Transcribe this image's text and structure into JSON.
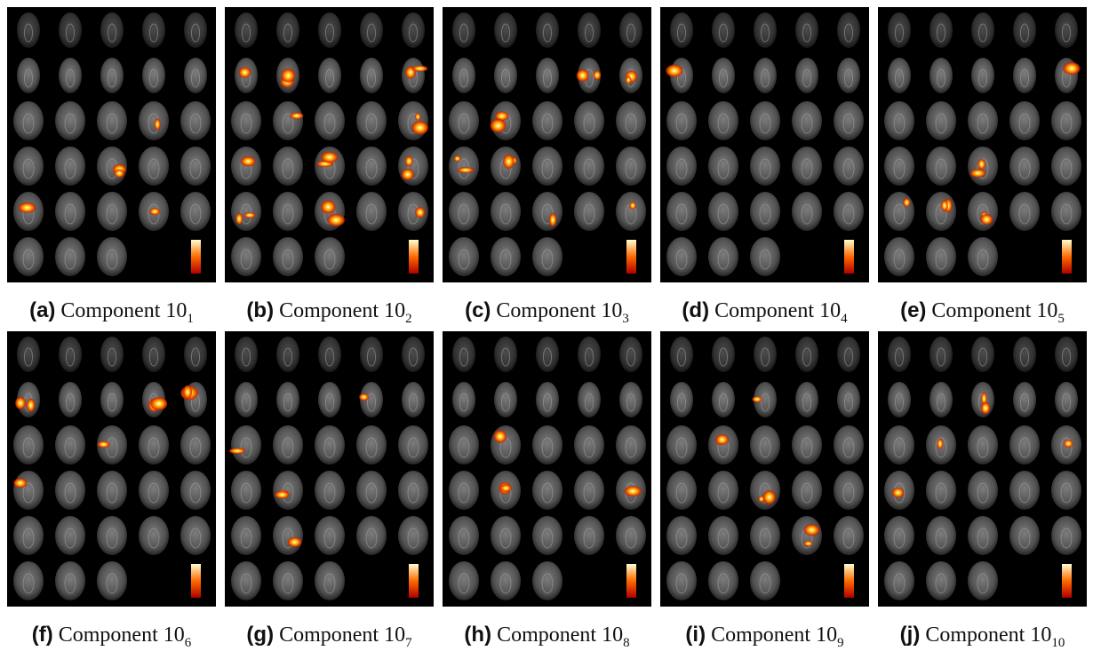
{
  "panels": [
    {
      "label": "(a)",
      "caption": "Component 10",
      "subscript": "1"
    },
    {
      "label": "(b)",
      "caption": "Component 10",
      "subscript": "2"
    },
    {
      "label": "(c)",
      "caption": "Component 10",
      "subscript": "3"
    },
    {
      "label": "(d)",
      "caption": "Component 10",
      "subscript": "4"
    },
    {
      "label": "(e)",
      "caption": "Component 10",
      "subscript": "5"
    },
    {
      "label": "(f)",
      "caption": "Component 10",
      "subscript": "6"
    },
    {
      "label": "(g)",
      "caption": "Component 10",
      "subscript": "7"
    },
    {
      "label": "(h)",
      "caption": "Component 10",
      "subscript": "8"
    },
    {
      "label": "(i)",
      "caption": "Component 10",
      "subscript": "9"
    },
    {
      "label": "(j)",
      "caption": "Component 10",
      "subscript": "10"
    }
  ]
}
